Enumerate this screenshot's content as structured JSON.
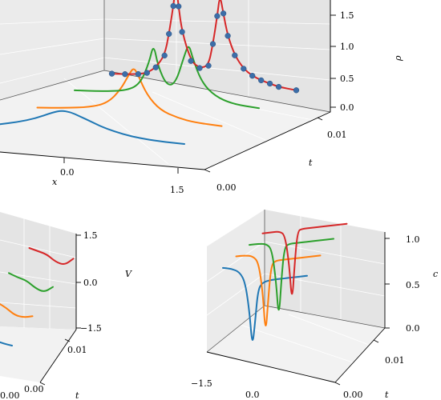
{
  "colors": {
    "blue": "#1f77b4",
    "orange": "#ff7f0e",
    "green": "#2ca02c",
    "red": "#d62728",
    "marker": "#3c6ea8"
  },
  "chart_data": [
    {
      "type": "line",
      "panel": "rho",
      "zlabel": "ρ",
      "xlabel": "x",
      "ylabel": "t",
      "xticks": [
        "0.0",
        "1.5"
      ],
      "yticks": [
        "0.00",
        "0.01"
      ],
      "zticks": [
        "0.0",
        "0.5",
        "1.0",
        "1.5"
      ],
      "zlim": [
        0,
        1.5
      ],
      "series": [
        {
          "color": "blue",
          "t": 0.0,
          "x": [
            -0.6,
            -0.4,
            -0.2,
            0.0,
            0.1,
            0.2,
            0.3,
            0.45,
            0.6,
            0.8,
            1.0,
            1.2,
            1.5
          ],
          "z": [
            0.06,
            0.12,
            0.2,
            0.32,
            0.36,
            0.35,
            0.3,
            0.22,
            0.14,
            0.07,
            0.03,
            0.01,
            0.0
          ]
        },
        {
          "color": "orange",
          "t": 0.003,
          "x": [
            -0.6,
            -0.3,
            0.0,
            0.2,
            0.35,
            0.45,
            0.5,
            0.55,
            0.65,
            0.8,
            1.0,
            1.2,
            1.5
          ],
          "z": [
            0.05,
            0.08,
            0.13,
            0.22,
            0.45,
            0.72,
            0.82,
            0.7,
            0.4,
            0.18,
            0.08,
            0.03,
            0.01
          ]
        },
        {
          "color": "green",
          "t": 0.006,
          "x": [
            -0.6,
            -0.3,
            0.0,
            0.15,
            0.25,
            0.3,
            0.35,
            0.45,
            0.55,
            0.65,
            0.7,
            0.75,
            0.85,
            1.0,
            1.2,
            1.5
          ],
          "z": [
            0.05,
            0.07,
            0.12,
            0.25,
            0.6,
            0.9,
            0.55,
            0.25,
            0.3,
            0.75,
            0.95,
            0.7,
            0.35,
            0.15,
            0.05,
            0.02
          ]
        },
        {
          "color": "red",
          "t": 0.009,
          "markers": true,
          "x": [
            -0.6,
            -0.45,
            -0.3,
            -0.2,
            -0.1,
            0.0,
            0.05,
            0.1,
            0.13,
            0.16,
            0.2,
            0.3,
            0.4,
            0.5,
            0.55,
            0.6,
            0.63,
            0.67,
            0.72,
            0.8,
            0.9,
            1.0,
            1.1,
            1.2,
            1.3,
            1.5
          ],
          "z": [
            0.04,
            0.05,
            0.07,
            0.1,
            0.2,
            0.4,
            0.75,
            1.2,
            1.55,
            1.2,
            0.8,
            0.35,
            0.25,
            0.3,
            0.65,
            1.1,
            1.45,
            1.15,
            0.8,
            0.5,
            0.3,
            0.2,
            0.14,
            0.1,
            0.06,
            0.03
          ]
        }
      ]
    },
    {
      "type": "line",
      "panel": "V",
      "zlabel": "V",
      "ylabel": "t",
      "xticks": [
        "0.00"
      ],
      "yticks": [
        "0.00",
        "0.01"
      ],
      "zticks": [
        "−1.5",
        "0.0",
        "1.5"
      ],
      "zlim": [
        -1.5,
        1.5
      ],
      "series": [
        {
          "color": "blue",
          "t": 0.0,
          "x": [
            0.0,
            0.1,
            0.2,
            0.3,
            0.4,
            0.5
          ],
          "z": [
            -0.3,
            -0.25,
            -0.15,
            -0.05,
            0.1,
            0.3
          ]
        },
        {
          "color": "orange",
          "t": 0.003,
          "x": [
            0.0,
            0.1,
            0.2,
            0.3,
            0.4,
            0.5
          ],
          "z": [
            -0.1,
            0.0,
            0.05,
            0.0,
            0.2,
            0.55
          ]
        },
        {
          "color": "green",
          "t": 0.006,
          "x": [
            0.0,
            0.1,
            0.2,
            0.3,
            0.4,
            0.5
          ],
          "z": [
            -0.05,
            0.05,
            0.2,
            0.15,
            0.25,
            0.8
          ]
        },
        {
          "color": "red",
          "t": 0.009,
          "x": [
            0.0,
            0.1,
            0.2,
            0.3,
            0.4,
            0.5
          ],
          "z": [
            0.0,
            0.15,
            0.3,
            0.25,
            0.4,
            1.0
          ]
        }
      ]
    },
    {
      "type": "line",
      "panel": "c",
      "zlabel": "c",
      "ylabel": "t",
      "xticks": [
        "−1.5",
        "0.0"
      ],
      "yticks": [
        "0.00",
        "0.01"
      ],
      "zticks": [
        "0.0",
        "0.5",
        "1.0"
      ],
      "zlim": [
        0,
        1.1
      ],
      "series": [
        {
          "color": "blue",
          "t": 0.0,
          "x": [
            -1.5,
            -1.2,
            -0.9,
            -0.7,
            -0.55,
            -0.45,
            -0.35,
            -0.25,
            -0.1,
            0.2,
            0.6,
            1.0,
            1.5
          ],
          "z": [
            1.0,
            0.98,
            0.93,
            0.8,
            0.45,
            0.05,
            0.35,
            0.7,
            0.78,
            0.8,
            0.8,
            0.8,
            0.8
          ]
        },
        {
          "color": "orange",
          "t": 0.003,
          "x": [
            -1.5,
            -1.2,
            -0.9,
            -0.7,
            -0.55,
            -0.45,
            -0.35,
            -0.25,
            -0.1,
            0.2,
            0.6,
            1.0,
            1.5
          ],
          "z": [
            1.0,
            1.0,
            0.98,
            0.9,
            0.55,
            0.05,
            0.5,
            0.85,
            0.9,
            0.9,
            0.9,
            0.9,
            0.9
          ]
        },
        {
          "color": "green",
          "t": 0.006,
          "x": [
            -1.5,
            -1.2,
            -0.9,
            -0.7,
            -0.55,
            -0.45,
            -0.35,
            -0.25,
            -0.1,
            0.2,
            0.6,
            1.0,
            1.5
          ],
          "z": [
            1.0,
            1.0,
            0.99,
            0.92,
            0.55,
            0.1,
            0.6,
            0.92,
            0.96,
            0.96,
            0.96,
            0.96,
            0.96
          ]
        },
        {
          "color": "red",
          "t": 0.009,
          "x": [
            -1.5,
            -1.2,
            -0.9,
            -0.7,
            -0.55,
            -0.45,
            -0.35,
            -0.25,
            -0.1,
            0.2,
            0.6,
            1.0,
            1.5
          ],
          "z": [
            1.0,
            1.0,
            1.0,
            0.95,
            0.6,
            0.15,
            0.65,
            0.98,
            1.0,
            1.0,
            1.0,
            1.0,
            1.0
          ]
        }
      ]
    }
  ]
}
